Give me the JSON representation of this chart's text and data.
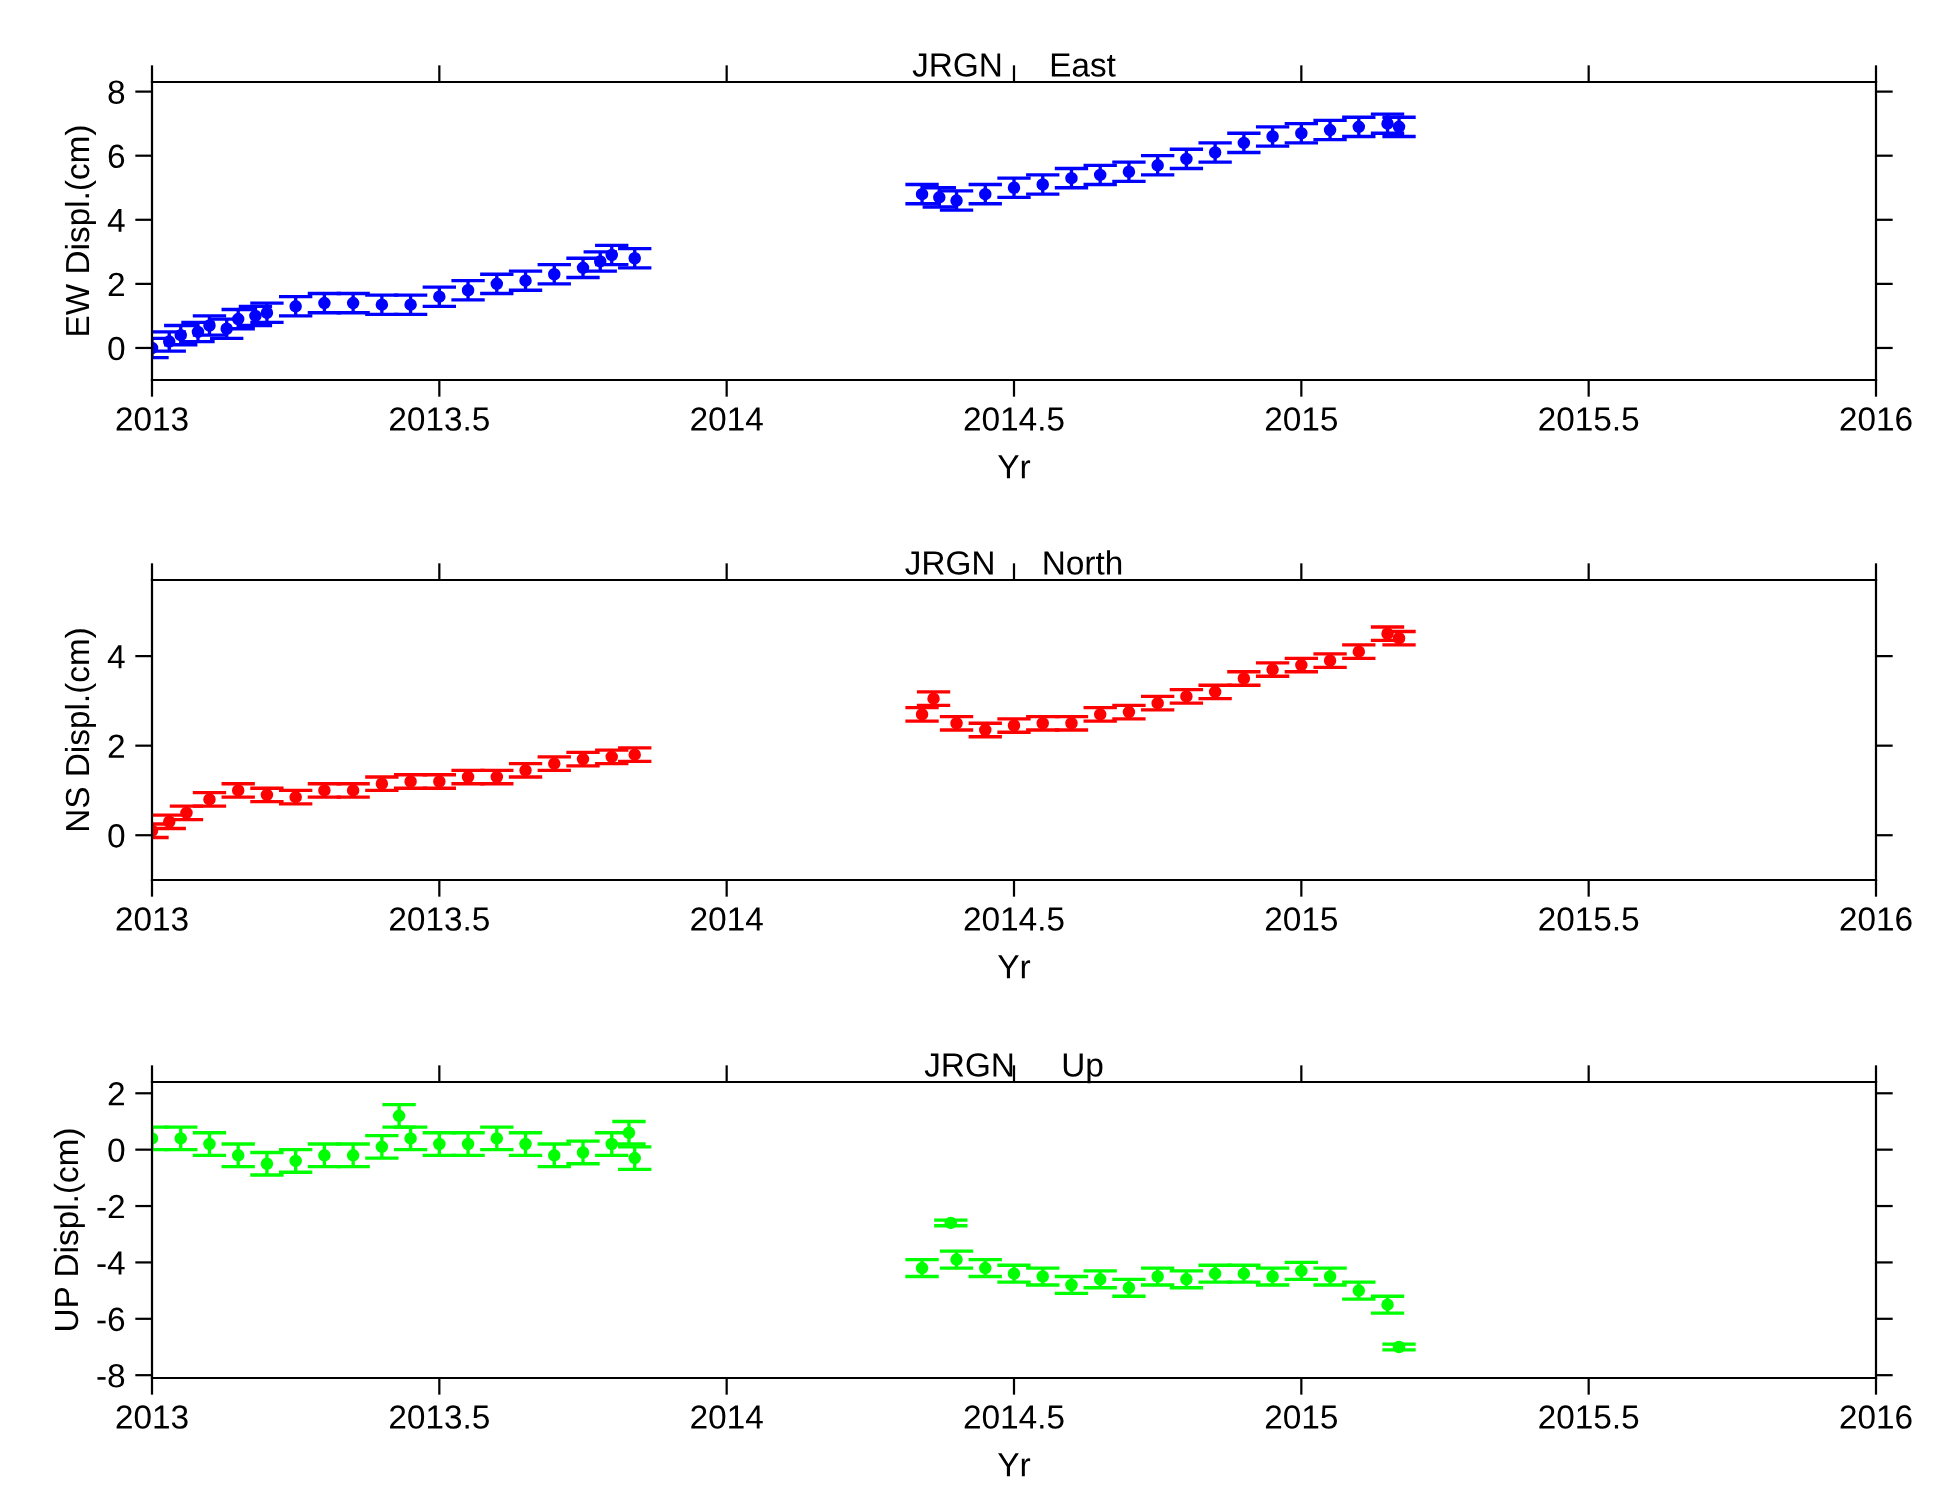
{
  "chart_data": [
    {
      "type": "scatter",
      "title": "JRGN     East",
      "xlabel": "Yr",
      "ylabel": "EW Displ.(cm)",
      "xlim": [
        2013,
        2016
      ],
      "xticks": [
        2013,
        2013.5,
        2014,
        2014.5,
        2015,
        2015.5,
        2016
      ],
      "ylim": [
        -1,
        8.3
      ],
      "yticks": [
        0,
        2,
        4,
        6,
        8
      ],
      "marker": "circle",
      "grid": false,
      "legend": false,
      "series": [
        {
          "color": "#0000ff",
          "x": [
            2013.0,
            2013.03,
            2013.05,
            2013.08,
            2013.1,
            2013.13,
            2013.15,
            2013.18,
            2013.2,
            2013.25,
            2013.3,
            2013.35,
            2013.4,
            2013.45,
            2013.5,
            2013.55,
            2013.6,
            2013.65,
            2013.7,
            2013.75,
            2013.78,
            2013.8,
            2013.84,
            2014.34,
            2014.37,
            2014.4,
            2014.45,
            2014.5,
            2014.55,
            2014.6,
            2014.65,
            2014.7,
            2014.75,
            2014.8,
            2014.85,
            2014.9,
            2014.95,
            2015.0,
            2015.05,
            2015.1,
            2015.15,
            2015.17
          ],
          "values": [
            0.0,
            0.2,
            0.4,
            0.5,
            0.7,
            0.6,
            0.9,
            1.0,
            1.1,
            1.3,
            1.4,
            1.4,
            1.35,
            1.35,
            1.6,
            1.8,
            2.0,
            2.1,
            2.3,
            2.5,
            2.7,
            2.9,
            2.8,
            4.8,
            4.7,
            4.6,
            4.8,
            5.0,
            5.1,
            5.3,
            5.4,
            5.5,
            5.7,
            5.9,
            6.1,
            6.4,
            6.6,
            6.7,
            6.8,
            6.9,
            7.0,
            6.9
          ],
          "errors": [
            0.3,
            0.3,
            0.3,
            0.3,
            0.3,
            0.3,
            0.3,
            0.3,
            0.3,
            0.3,
            0.3,
            0.3,
            0.3,
            0.3,
            0.3,
            0.3,
            0.3,
            0.3,
            0.3,
            0.3,
            0.3,
            0.3,
            0.3,
            0.3,
            0.3,
            0.3,
            0.3,
            0.3,
            0.3,
            0.3,
            0.3,
            0.3,
            0.3,
            0.3,
            0.3,
            0.3,
            0.3,
            0.3,
            0.3,
            0.3,
            0.3,
            0.3
          ]
        }
      ]
    },
    {
      "type": "scatter",
      "title": "JRGN     North",
      "xlabel": "Yr",
      "ylabel": "NS Displ.(cm)",
      "xlim": [
        2013,
        2016
      ],
      "xticks": [
        2013,
        2013.5,
        2014,
        2014.5,
        2015,
        2015.5,
        2016
      ],
      "ylim": [
        -1,
        5.7
      ],
      "yticks": [
        0,
        2,
        4
      ],
      "marker": "circle",
      "grid": false,
      "legend": false,
      "series": [
        {
          "color": "#ff0000",
          "x": [
            2013.0,
            2013.03,
            2013.06,
            2013.1,
            2013.15,
            2013.2,
            2013.25,
            2013.3,
            2013.35,
            2013.4,
            2013.45,
            2013.5,
            2013.55,
            2013.6,
            2013.65,
            2013.7,
            2013.75,
            2013.8,
            2013.84,
            2014.34,
            2014.36,
            2014.4,
            2014.45,
            2014.5,
            2014.55,
            2014.6,
            2014.65,
            2014.7,
            2014.75,
            2014.8,
            2014.85,
            2014.9,
            2014.95,
            2015.0,
            2015.05,
            2015.1,
            2015.15,
            2015.17
          ],
          "values": [
            0.1,
            0.3,
            0.5,
            0.8,
            1.0,
            0.9,
            0.85,
            1.0,
            1.0,
            1.15,
            1.2,
            1.2,
            1.3,
            1.3,
            1.45,
            1.6,
            1.7,
            1.75,
            1.8,
            2.7,
            3.05,
            2.5,
            2.35,
            2.45,
            2.5,
            2.5,
            2.7,
            2.75,
            2.95,
            3.1,
            3.2,
            3.5,
            3.7,
            3.8,
            3.9,
            4.1,
            4.5,
            4.4
          ],
          "errors": [
            0.15,
            0.15,
            0.15,
            0.15,
            0.15,
            0.15,
            0.15,
            0.15,
            0.15,
            0.15,
            0.15,
            0.15,
            0.15,
            0.15,
            0.15,
            0.15,
            0.15,
            0.15,
            0.15,
            0.15,
            0.15,
            0.15,
            0.15,
            0.15,
            0.15,
            0.15,
            0.15,
            0.15,
            0.15,
            0.15,
            0.15,
            0.15,
            0.15,
            0.15,
            0.15,
            0.15,
            0.15,
            0.15
          ]
        }
      ]
    },
    {
      "type": "scatter",
      "title": "JRGN     Up",
      "xlabel": "Yr",
      "ylabel": "UP Displ.(cm)",
      "xlim": [
        2013,
        2016
      ],
      "xticks": [
        2013,
        2013.5,
        2014,
        2014.5,
        2015,
        2015.5,
        2016
      ],
      "ylim": [
        -8.1,
        2.4
      ],
      "yticks": [
        2,
        0,
        -2,
        -4,
        -6,
        -8
      ],
      "marker": "circle",
      "grid": false,
      "legend": false,
      "series": [
        {
          "color": "#00ff00",
          "x": [
            2013.0,
            2013.05,
            2013.1,
            2013.15,
            2013.2,
            2013.25,
            2013.3,
            2013.35,
            2013.4,
            2013.43,
            2013.45,
            2013.5,
            2013.55,
            2013.6,
            2013.65,
            2013.7,
            2013.75,
            2013.8,
            2013.83,
            2013.84,
            2014.34,
            2014.39,
            2014.4,
            2014.45,
            2014.5,
            2014.55,
            2014.6,
            2014.65,
            2014.7,
            2014.75,
            2014.8,
            2014.85,
            2014.9,
            2014.95,
            2015.0,
            2015.05,
            2015.1,
            2015.15,
            2015.17
          ],
          "values": [
            0.4,
            0.4,
            0.2,
            -0.2,
            -0.5,
            -0.4,
            -0.2,
            -0.2,
            0.1,
            1.2,
            0.4,
            0.2,
            0.2,
            0.4,
            0.2,
            -0.2,
            -0.1,
            0.2,
            0.6,
            -0.3,
            -4.2,
            -2.6,
            -3.9,
            -4.2,
            -4.4,
            -4.5,
            -4.8,
            -4.6,
            -4.9,
            -4.5,
            -4.6,
            -4.4,
            -4.4,
            -4.5,
            -4.3,
            -4.5,
            -5.0,
            -5.5,
            -7.0
          ],
          "errors": [
            0.4,
            0.4,
            0.4,
            0.4,
            0.4,
            0.4,
            0.4,
            0.4,
            0.4,
            0.4,
            0.4,
            0.4,
            0.4,
            0.4,
            0.4,
            0.4,
            0.4,
            0.4,
            0.4,
            0.4,
            0.3,
            0.1,
            0.3,
            0.3,
            0.3,
            0.3,
            0.3,
            0.3,
            0.3,
            0.3,
            0.3,
            0.3,
            0.3,
            0.3,
            0.3,
            0.3,
            0.3,
            0.3,
            0.1
          ]
        }
      ]
    }
  ]
}
